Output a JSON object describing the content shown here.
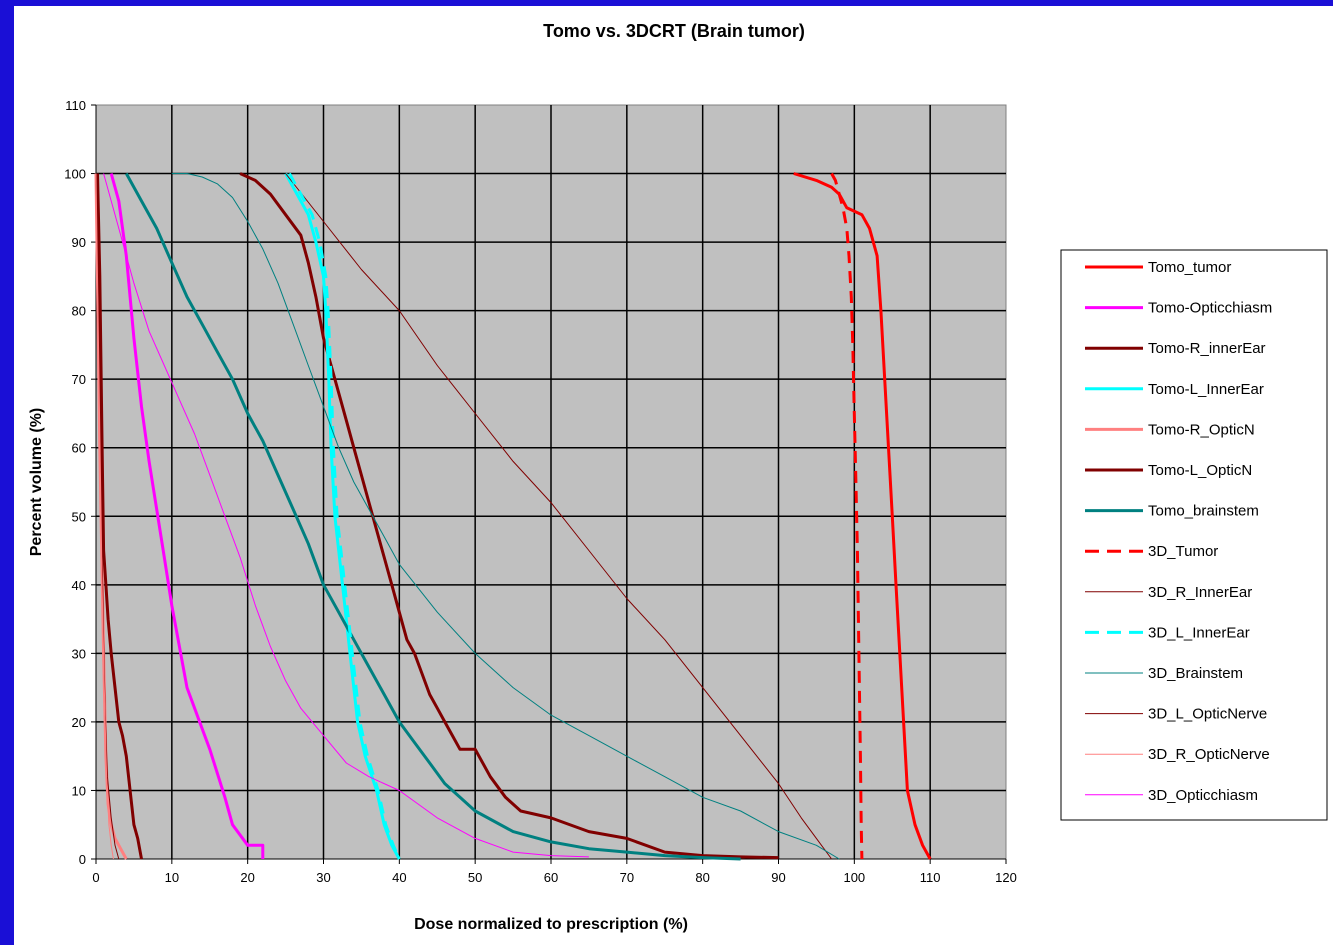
{
  "chart_data": {
    "type": "line",
    "title": "Tomo vs. 3DCRT (Brain tumor)",
    "xlabel": "Dose normalized to prescription (%)",
    "ylabel": "Percent volume (%)",
    "xlim": [
      0,
      120
    ],
    "ylim": [
      0,
      110
    ],
    "xticks": [
      0,
      10,
      20,
      30,
      40,
      50,
      60,
      70,
      80,
      90,
      100,
      110,
      120
    ],
    "yticks": [
      0,
      10,
      20,
      30,
      40,
      50,
      60,
      70,
      80,
      90,
      100,
      110
    ],
    "grid": true,
    "legend_position": "right",
    "plot_background": "#c0c0c0",
    "series": [
      {
        "name": "Tomo_tumor",
        "color": "#ff0000",
        "width": 3,
        "dash": "solid",
        "x": [
          92,
          95,
          97,
          98,
          99,
          101,
          102,
          103,
          103.5,
          104,
          104.5,
          105,
          105.5,
          106,
          106.5,
          107,
          108,
          109,
          110
        ],
        "y": [
          100,
          99,
          98,
          97,
          95,
          94,
          92,
          88,
          80,
          70,
          60,
          50,
          40,
          30,
          20,
          10,
          5,
          2,
          0
        ]
      },
      {
        "name": "Tomo-Opticchiasm",
        "color": "#ff00ff",
        "width": 3,
        "dash": "solid",
        "x": [
          2,
          3,
          4,
          5,
          6,
          7,
          8,
          9,
          10,
          11,
          12,
          14,
          15,
          17,
          18,
          20,
          22,
          22
        ],
        "y": [
          100,
          96,
          88,
          76,
          66,
          58,
          51,
          44,
          37,
          31,
          25,
          19,
          16,
          9,
          5,
          2,
          2,
          0
        ]
      },
      {
        "name": "Tomo-R_innerEar",
        "color": "#800000",
        "width": 3,
        "dash": "solid",
        "x": [
          19,
          21,
          23,
          25,
          27,
          28,
          29,
          30,
          31,
          32,
          33,
          34,
          35,
          36,
          37,
          38,
          39,
          40,
          41,
          42,
          43,
          44,
          45,
          46,
          48,
          50,
          52,
          54,
          56,
          60,
          65,
          70,
          75,
          80,
          85,
          90
        ],
        "y": [
          100,
          99,
          97,
          94,
          91,
          87,
          82,
          76,
          72,
          68,
          64,
          60,
          56,
          52,
          48,
          44,
          40,
          36,
          32,
          30,
          27,
          24,
          22,
          20,
          16,
          16,
          12,
          9,
          7,
          6,
          4,
          3,
          1,
          0.5,
          0.3,
          0.2
        ]
      },
      {
        "name": "Tomo-L_InnerEar",
        "color": "#00ffff",
        "width": 3,
        "dash": "solid",
        "x": [
          25,
          26,
          28,
          29,
          30,
          30.3,
          30.7,
          31,
          31.5,
          32.5,
          33.5,
          34.5,
          35.5,
          37,
          38,
          39,
          40
        ],
        "y": [
          100,
          98,
          94,
          90,
          85,
          80,
          70,
          60,
          50,
          40,
          30,
          20,
          15,
          10,
          5,
          2,
          0
        ]
      },
      {
        "name": "Tomo-R_OpticN",
        "color": "#ff8080",
        "width": 3,
        "dash": "solid",
        "x": [
          0,
          0.5,
          1,
          1.3,
          1.6,
          2,
          2.5,
          3,
          3.5,
          4
        ],
        "y": [
          100,
          60,
          30,
          15,
          8,
          5,
          3,
          2,
          1,
          0
        ]
      },
      {
        "name": "Tomo-L_OpticN",
        "color": "#800000",
        "width": 3,
        "dash": "solid",
        "x": [
          0.2,
          0.5,
          0.8,
          1,
          1.3,
          1.6,
          2,
          2.5,
          3,
          3.5,
          4,
          4.5,
          5,
          5.5,
          6
        ],
        "y": [
          100,
          85,
          60,
          45,
          40,
          35,
          30,
          25,
          20,
          18,
          15,
          10,
          5,
          3,
          0
        ]
      },
      {
        "name": "Tomo_brainstem",
        "color": "#008080",
        "width": 3,
        "dash": "solid",
        "x": [
          4,
          6,
          8,
          10,
          12,
          14,
          16,
          18,
          20,
          22,
          24,
          26,
          28,
          30,
          32,
          34,
          36,
          38,
          40,
          42,
          44,
          46,
          48,
          50,
          55,
          60,
          65,
          70,
          75,
          80,
          85
        ],
        "y": [
          100,
          96,
          92,
          87,
          82,
          78,
          74,
          70,
          65,
          61,
          56,
          51,
          46,
          40,
          36,
          32,
          28,
          24,
          20,
          17,
          14,
          11,
          9,
          7,
          4,
          2.5,
          1.5,
          1,
          0.5,
          0.2,
          0
        ]
      },
      {
        "name": "3D_Tumor",
        "color": "#ff0000",
        "width": 3,
        "dash": "12,8",
        "x": [
          97,
          97.5,
          98,
          98.5,
          99,
          99.3,
          99.6,
          99.8,
          100,
          100.2,
          100.4,
          100.6,
          100.8,
          100.9,
          101
        ],
        "y": [
          100,
          99,
          97,
          95,
          92,
          88,
          82,
          75,
          65,
          55,
          45,
          30,
          15,
          5,
          0
        ]
      },
      {
        "name": "3D_R_InnerEar",
        "color": "#800000",
        "width": 1,
        "dash": "solid",
        "x": [
          25,
          30,
          35,
          40,
          45,
          50,
          55,
          60,
          65,
          70,
          75,
          80,
          85,
          90,
          93,
          95,
          97
        ],
        "y": [
          100,
          93,
          86,
          80,
          72,
          65,
          58,
          52,
          45,
          38,
          32,
          25,
          18,
          11,
          6,
          3,
          0
        ]
      },
      {
        "name": "3D_L_InnerEar",
        "color": "#00ffff",
        "width": 3,
        "dash": "12,8",
        "x": [
          25.5,
          26.5,
          28.5,
          29.5,
          30.3,
          30.6,
          31,
          31.3,
          31.8,
          32.8,
          33.8,
          34.8,
          35.8,
          37.2,
          38.2,
          39.2,
          40
        ],
        "y": [
          100,
          98,
          94,
          90,
          85,
          80,
          70,
          60,
          50,
          40,
          30,
          20,
          15,
          10,
          5,
          2,
          0
        ]
      },
      {
        "name": "3D_Brainstem",
        "color": "#008080",
        "width": 1,
        "dash": "solid",
        "x": [
          10,
          12,
          14,
          16,
          18,
          20,
          22,
          24,
          26,
          28,
          30,
          32,
          34,
          36,
          38,
          40,
          45,
          50,
          55,
          60,
          65,
          70,
          75,
          80,
          85,
          90,
          95,
          98
        ],
        "y": [
          100,
          100,
          99.5,
          98.5,
          96.5,
          93,
          89,
          84,
          78,
          72,
          66,
          60,
          55,
          51,
          47,
          43,
          36,
          30,
          25,
          21,
          18,
          15,
          12,
          9,
          7,
          4,
          2,
          0
        ]
      },
      {
        "name": "3D_L_OpticNerve",
        "color": "#800000",
        "width": 1,
        "dash": "solid",
        "x": [
          0,
          0.2,
          0.4,
          0.6,
          0.8,
          1,
          1.2,
          1.5,
          2,
          2.5,
          3
        ],
        "y": [
          100,
          90,
          75,
          60,
          45,
          32,
          22,
          12,
          6,
          2,
          0
        ]
      },
      {
        "name": "3D_R_OpticNerve",
        "color": "#ff8080",
        "width": 1,
        "dash": "solid",
        "x": [
          0,
          0.4,
          0.8,
          1.1,
          1.4,
          1.7,
          2,
          2.3
        ],
        "y": [
          100,
          70,
          40,
          25,
          12,
          5,
          2,
          0
        ]
      },
      {
        "name": "3D_Opticchiasm",
        "color": "#ff00ff",
        "width": 1,
        "dash": "solid",
        "x": [
          1,
          3,
          5,
          7,
          9,
          11,
          13,
          15,
          17,
          19,
          21,
          23,
          25,
          27,
          30,
          33,
          36,
          40,
          45,
          50,
          55,
          60,
          65
        ],
        "y": [
          100,
          92,
          84,
          77,
          72,
          67,
          62,
          56,
          50,
          44,
          37,
          31,
          26,
          22,
          18,
          14,
          12,
          10,
          6,
          3,
          1,
          0.5,
          0.3
        ]
      }
    ]
  }
}
